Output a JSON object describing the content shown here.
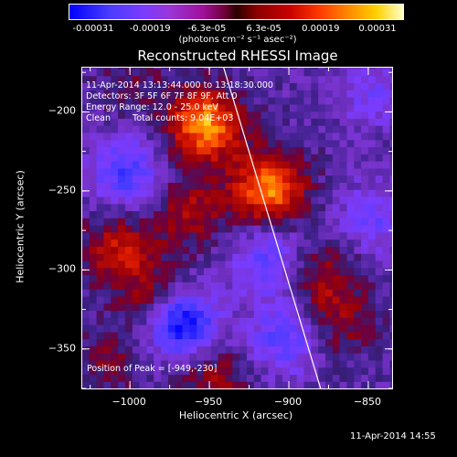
{
  "colorbar": {
    "tick_labels": [
      "-0.00031",
      "-0.00019",
      "-6.3e-05",
      "6.3e-05",
      "0.00019",
      "0.00031"
    ],
    "units": "(photons cm⁻² s⁻¹ asec⁻²)",
    "colors": [
      "#0000ff",
      "#7a3cff",
      "#a0109a",
      "#2a0000",
      "#c80000",
      "#ff8c00",
      "#ffffc8"
    ]
  },
  "chart_data": {
    "type": "heatmap",
    "title": "Reconstructed RHESSI Image",
    "xlabel": "Heliocentric X (arcsec)",
    "ylabel": "Heliocentric Y (arcsec)",
    "xlim": [
      -1030,
      -835
    ],
    "ylim": [
      -375,
      -172
    ],
    "x_ticks": [
      -1000,
      -950,
      -900,
      -850
    ],
    "y_ticks": [
      -200,
      -250,
      -300,
      -350
    ],
    "x_tick_labels": [
      "−1000",
      "−950",
      "−900",
      "−850"
    ],
    "y_tick_labels": [
      "−200",
      "−250",
      "−300",
      "−350"
    ],
    "clim": [
      -0.00031,
      0.00031
    ],
    "colormap": "blue-purple-black-red-yellow-white",
    "limb_line": {
      "x": [
        -941,
        -880
      ],
      "y": [
        -172,
        -375
      ]
    },
    "peak_position": [
      -949,
      -230
    ],
    "sources": [
      {
        "x": -955,
        "y": -210,
        "value": 0.00029
      },
      {
        "x": -915,
        "y": -250,
        "value": 0.00028
      },
      {
        "x": -1010,
        "y": -290,
        "value": 0.00016
      },
      {
        "x": -985,
        "y": -320,
        "value": 0.00014
      },
      {
        "x": -965,
        "y": -265,
        "value": 0.00013
      },
      {
        "x": -880,
        "y": -305,
        "value": 0.00012
      },
      {
        "x": -870,
        "y": -335,
        "value": 0.0001
      },
      {
        "x": -950,
        "y": -370,
        "value": 0.00012
      },
      {
        "x": -1015,
        "y": -360,
        "value": 8e-05
      },
      {
        "x": -1000,
        "y": -185,
        "value": 6e-05
      },
      {
        "x": -970,
        "y": -335,
        "value": -0.0003
      },
      {
        "x": -1005,
        "y": -240,
        "value": -0.00018
      },
      {
        "x": -905,
        "y": -345,
        "value": -0.00016
      },
      {
        "x": -915,
        "y": -295,
        "value": -0.00015
      },
      {
        "x": -850,
        "y": -270,
        "value": -0.00012
      },
      {
        "x": -850,
        "y": -190,
        "value": -0.0001
      }
    ]
  },
  "annotations": {
    "time_range": "11-Apr-2014 13:13:44.000 to 13:18:30.000",
    "detectors": "Detectors: 3F 5F 6F 7F 8F 9F, Att 0",
    "energy_range": "Energy Range: 12.0 - 25.0 keV",
    "clean_label": "Clean",
    "total_counts": "Total counts: 9.04E+03",
    "peak_position": "Position of Peak = [-949,-230]"
  },
  "footer": {
    "timestamp": "11-Apr-2014 14:55"
  }
}
